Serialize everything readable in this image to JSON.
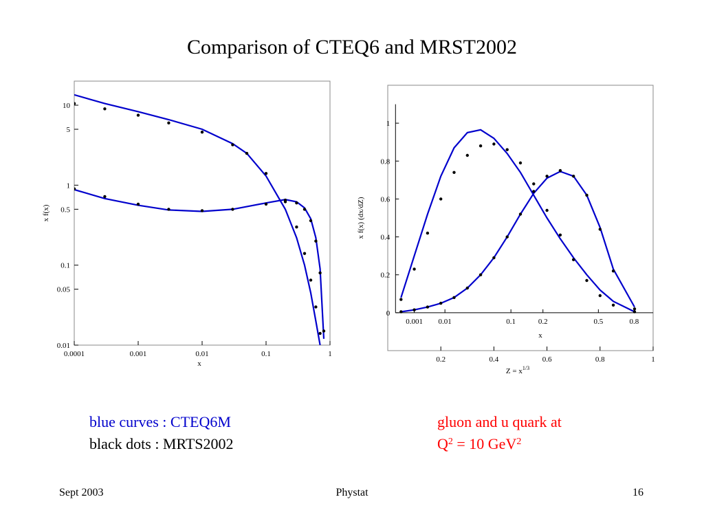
{
  "slide": {
    "title": "Comparison of CTEQ6 and MRST2002",
    "legend": {
      "blue_label": "blue curves : CTEQ6M",
      "black_label": "black dots : MRTS2002"
    },
    "note": {
      "line1": "gluon and u quark at",
      "q_symbol": "Q",
      "sup1": "2",
      "equals": " = 10 GeV",
      "sup2": "2"
    },
    "footer": {
      "left": "Sept 2003",
      "center": "Phystat",
      "right": "16"
    }
  },
  "colors": {
    "cteq6m": "#0000cc",
    "mrst2002": "#000000",
    "note": "#ff0000"
  },
  "chart_data": [
    {
      "type": "line",
      "scale": {
        "x": "log",
        "y": "log"
      },
      "xlabel": "x",
      "ylabel": "x f(x)",
      "xlim": [
        0.0001,
        1
      ],
      "ylim": [
        0.01,
        20
      ],
      "xticks": [
        0.0001,
        0.001,
        0.01,
        0.1,
        1
      ],
      "xtick_labels": [
        "0.0001",
        "0.001",
        "0.01",
        "0.1",
        "1"
      ],
      "yticks": [
        0.01,
        0.05,
        0.1,
        0.5,
        1,
        5,
        10
      ],
      "ytick_labels": [
        "0.01",
        "0.05",
        "0.1",
        "0.5",
        "1",
        "5",
        "10"
      ],
      "series": [
        {
          "name": "gluon",
          "group": "cteq6m",
          "style": "line",
          "x": [
            0.0001,
            0.0003,
            0.001,
            0.003,
            0.01,
            0.03,
            0.05,
            0.1,
            0.2,
            0.3,
            0.4,
            0.5,
            0.6,
            0.7
          ],
          "y": [
            13.5,
            10.5,
            8.3,
            6.6,
            5.0,
            3.3,
            2.5,
            1.3,
            0.5,
            0.22,
            0.1,
            0.045,
            0.02,
            0.01
          ]
        },
        {
          "name": "gluon",
          "group": "mrst2002",
          "style": "dots",
          "x": [
            0.0001,
            0.0003,
            0.001,
            0.003,
            0.01,
            0.03,
            0.05,
            0.1,
            0.2,
            0.3,
            0.4,
            0.5,
            0.6,
            0.7
          ],
          "y": [
            10.5,
            9.0,
            7.5,
            6.0,
            4.6,
            3.2,
            2.5,
            1.4,
            0.62,
            0.3,
            0.14,
            0.065,
            0.03,
            0.014
          ]
        },
        {
          "name": "u quark",
          "group": "cteq6m",
          "style": "line",
          "x": [
            0.0001,
            0.0003,
            0.001,
            0.003,
            0.01,
            0.03,
            0.1,
            0.2,
            0.3,
            0.4,
            0.5,
            0.6,
            0.7,
            0.8
          ],
          "y": [
            0.88,
            0.68,
            0.56,
            0.49,
            0.47,
            0.5,
            0.6,
            0.66,
            0.62,
            0.52,
            0.38,
            0.22,
            0.09,
            0.012
          ]
        },
        {
          "name": "u quark",
          "group": "mrst2002",
          "style": "dots",
          "x": [
            0.0001,
            0.0003,
            0.001,
            0.003,
            0.01,
            0.03,
            0.1,
            0.2,
            0.3,
            0.4,
            0.5,
            0.6,
            0.7,
            0.8
          ],
          "y": [
            0.9,
            0.72,
            0.58,
            0.5,
            0.48,
            0.5,
            0.58,
            0.65,
            0.6,
            0.5,
            0.36,
            0.2,
            0.08,
            0.015
          ]
        }
      ]
    },
    {
      "type": "line",
      "scale": {
        "x": "linear",
        "y": "linear"
      },
      "xlabel": "Z = x",
      "xlabel_sup": "1/3",
      "ylabel": "x f(x) (dx/dZ)",
      "xlim": [
        0,
        1
      ],
      "ylim": [
        -0.2,
        1.2
      ],
      "xticks": [
        0.2,
        0.4,
        0.6,
        0.8,
        1
      ],
      "xtick_labels": [
        "0.2",
        "0.4",
        "0.6",
        "0.8",
        "1"
      ],
      "yticks": [
        0,
        0.2,
        0.4,
        0.6,
        0.8,
        1
      ],
      "ytick_labels": [
        "0",
        "0.2",
        "0.4",
        "0.6",
        "0.8",
        "1"
      ],
      "inner_axis": {
        "label": "x",
        "ticks": [
          0.001,
          0.01,
          0.1,
          0.2,
          0.5,
          0.8
        ],
        "tick_labels": [
          "0.001",
          "0.01",
          "0.1",
          "0.2",
          "0.5",
          "0.8"
        ]
      },
      "series": [
        {
          "name": "gluon",
          "group": "cteq6m",
          "style": "line",
          "x": [
            0.05,
            0.1,
            0.15,
            0.2,
            0.25,
            0.3,
            0.35,
            0.4,
            0.45,
            0.5,
            0.55,
            0.6,
            0.65,
            0.7,
            0.75,
            0.8,
            0.85,
            0.93
          ],
          "y": [
            0.08,
            0.3,
            0.52,
            0.72,
            0.87,
            0.95,
            0.965,
            0.92,
            0.84,
            0.74,
            0.62,
            0.5,
            0.39,
            0.29,
            0.2,
            0.12,
            0.06,
            0.005
          ]
        },
        {
          "name": "gluon",
          "group": "mrst2002",
          "style": "dots",
          "x": [
            0.05,
            0.1,
            0.15,
            0.2,
            0.25,
            0.3,
            0.35,
            0.4,
            0.45,
            0.5,
            0.55,
            0.6,
            0.65,
            0.7,
            0.75,
            0.8,
            0.85,
            0.93
          ],
          "y": [
            0.07,
            0.23,
            0.42,
            0.6,
            0.74,
            0.83,
            0.88,
            0.89,
            0.86,
            0.79,
            0.68,
            0.54,
            0.41,
            0.28,
            0.17,
            0.09,
            0.04,
            0.005
          ]
        },
        {
          "name": "u quark",
          "group": "cteq6m",
          "style": "line",
          "x": [
            0.05,
            0.1,
            0.15,
            0.2,
            0.25,
            0.3,
            0.35,
            0.4,
            0.45,
            0.5,
            0.55,
            0.6,
            0.65,
            0.7,
            0.75,
            0.8,
            0.85,
            0.93
          ],
          "y": [
            0.005,
            0.015,
            0.03,
            0.05,
            0.08,
            0.13,
            0.2,
            0.29,
            0.4,
            0.52,
            0.63,
            0.71,
            0.745,
            0.72,
            0.62,
            0.45,
            0.23,
            0.03
          ]
        },
        {
          "name": "u quark",
          "group": "mrst2002",
          "style": "dots",
          "x": [
            0.05,
            0.1,
            0.15,
            0.2,
            0.25,
            0.3,
            0.35,
            0.4,
            0.45,
            0.5,
            0.55,
            0.6,
            0.65,
            0.7,
            0.75,
            0.8,
            0.85,
            0.93
          ],
          "y": [
            0.005,
            0.015,
            0.03,
            0.05,
            0.08,
            0.13,
            0.2,
            0.29,
            0.4,
            0.52,
            0.64,
            0.72,
            0.75,
            0.72,
            0.62,
            0.44,
            0.22,
            0.02
          ]
        }
      ]
    }
  ]
}
